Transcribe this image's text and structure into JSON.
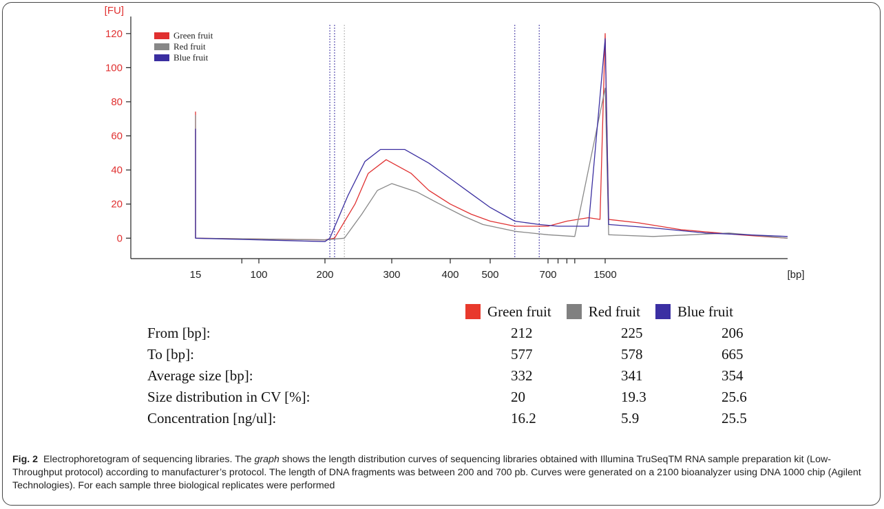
{
  "chart_data": {
    "type": "line",
    "y_unit_label": "[FU]",
    "x_unit_label": "[bp]",
    "y_ticks": [
      "0",
      "20",
      "40",
      "60",
      "80",
      "100",
      "120"
    ],
    "x_ticks": [
      "15",
      "100",
      "200",
      "300",
      "400",
      "500",
      "700",
      "1500"
    ],
    "ylim": [
      -12,
      130
    ],
    "legend": [
      "Green fruit",
      "Red fruit",
      "Blue fruit"
    ],
    "legend_placement": "top-left",
    "series": [
      {
        "name": "Green fruit",
        "color": "#e03030",
        "points": [
          [
            15,
            0
          ],
          [
            15,
            74
          ],
          [
            15,
            0
          ],
          [
            200,
            -1
          ],
          [
            212,
            0
          ],
          [
            240,
            20
          ],
          [
            260,
            38
          ],
          [
            290,
            46
          ],
          [
            330,
            38
          ],
          [
            360,
            28
          ],
          [
            400,
            20
          ],
          [
            450,
            14
          ],
          [
            500,
            10
          ],
          [
            577,
            7
          ],
          [
            700,
            7
          ],
          [
            900,
            10
          ],
          [
            1200,
            12
          ],
          [
            1400,
            11
          ],
          [
            1500,
            120
          ],
          [
            1520,
            11
          ],
          [
            1700,
            9
          ],
          [
            2000,
            5
          ],
          [
            2500,
            2
          ],
          [
            3000,
            0
          ]
        ]
      },
      {
        "name": "Red fruit",
        "color": "#888888",
        "points": [
          [
            15,
            0
          ],
          [
            15,
            72
          ],
          [
            15,
            0
          ],
          [
            200,
            -1
          ],
          [
            225,
            0
          ],
          [
            250,
            14
          ],
          [
            275,
            28
          ],
          [
            300,
            32
          ],
          [
            340,
            27
          ],
          [
            380,
            20
          ],
          [
            430,
            13
          ],
          [
            480,
            8
          ],
          [
            578,
            4
          ],
          [
            700,
            2
          ],
          [
            1000,
            1
          ],
          [
            1500,
            88
          ],
          [
            1520,
            2
          ],
          [
            1800,
            1
          ],
          [
            2400,
            3
          ],
          [
            3000,
            0
          ]
        ]
      },
      {
        "name": "Blue fruit",
        "color": "#3a2ea0",
        "points": [
          [
            15,
            0
          ],
          [
            15,
            64
          ],
          [
            15,
            0
          ],
          [
            200,
            -2
          ],
          [
            206,
            0
          ],
          [
            230,
            25
          ],
          [
            255,
            45
          ],
          [
            280,
            52
          ],
          [
            320,
            52
          ],
          [
            360,
            44
          ],
          [
            400,
            35
          ],
          [
            450,
            26
          ],
          [
            500,
            18
          ],
          [
            577,
            10
          ],
          [
            665,
            8
          ],
          [
            800,
            7
          ],
          [
            1200,
            7
          ],
          [
            1500,
            117
          ],
          [
            1520,
            8
          ],
          [
            1800,
            6
          ],
          [
            2200,
            3
          ],
          [
            3000,
            1
          ]
        ]
      }
    ]
  },
  "table": {
    "headers": [
      "Green fruit",
      "Red fruit",
      "Blue fruit"
    ],
    "header_colors": [
      "#e8392c",
      "#808080",
      "#3b2fa3"
    ],
    "rows": [
      {
        "label": "From [bp]:",
        "values": [
          "212",
          "225",
          "206"
        ]
      },
      {
        "label": "To [bp]:",
        "values": [
          "577",
          "578",
          "665"
        ]
      },
      {
        "label": "Average size [bp]:",
        "values": [
          "332",
          "341",
          "354"
        ]
      },
      {
        "label": "Size distribution in CV [%]:",
        "values": [
          "20",
          "19.3",
          "25.6"
        ]
      },
      {
        "label": "Concentration [ng/ul]:",
        "values": [
          "16.2",
          "5.9",
          "25.5"
        ]
      }
    ]
  },
  "caption": {
    "fig_label": "Fig. 2",
    "text_before_italic": "Electrophoretogram of sequencing libraries. The",
    "italic": "graph",
    "text_after_italic": "shows the length distribution curves of sequencing libraries obtained with Illumina TruSeqTM RNA sample preparation kit (Low-Throughput protocol) according to manufacturer’s protocol. The length of DNA fragments was between 200 and 700 pb. Curves were generated on a 2100 bioanalyzer using DNA 1000 chip (Agilent Technologies). For each sample three biological replicates were performed"
  }
}
